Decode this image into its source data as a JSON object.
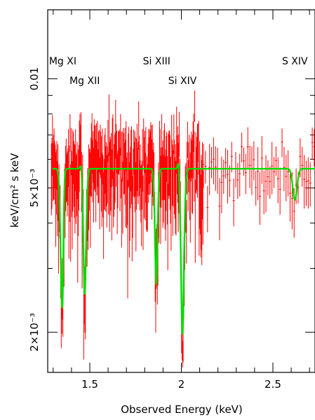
{
  "chart_data": {
    "type": "line",
    "xlabel": "Observed Energy (keV)",
    "ylabel": "keV/cm² s keV",
    "xlim": [
      1.27,
      2.73
    ],
    "ylim": [
      0.00155,
      0.0155
    ],
    "y_scale": "log",
    "x_ticks": [
      {
        "value": 1.5,
        "label": "1.5"
      },
      {
        "value": 2.0,
        "label": "2"
      },
      {
        "value": 2.5,
        "label": "2.5"
      }
    ],
    "y_ticks": [
      {
        "value": 0.002,
        "label": "2×10⁻³"
      },
      {
        "value": 0.005,
        "label": "5×10⁻³"
      },
      {
        "value": 0.01,
        "label": "0.01"
      }
    ],
    "line_labels": [
      {
        "text": "Mg XI",
        "energy": 1.352
      },
      {
        "text": "Mg XII",
        "energy": 1.472
      },
      {
        "text": "Si XIII",
        "energy": 1.865
      },
      {
        "text": "Si XIV",
        "energy": 2.006
      },
      {
        "text": "S XIV",
        "energy": 2.62
      }
    ],
    "series": [
      {
        "kind": "data",
        "color": "#ff0000",
        "continuum": 0.00565,
        "scatter": 0.0012,
        "energy_range": [
          1.29,
          2.73
        ],
        "note_absorption": true
      },
      {
        "kind": "model",
        "color": "#00dd00",
        "continuum": 0.00565,
        "absorption_lines": [
          {
            "energy": 1.345,
            "depth": 0.47,
            "width": 0.008
          },
          {
            "energy": 1.352,
            "depth": 0.35,
            "width": 0.005
          },
          {
            "energy": 1.472,
            "depth": 0.55,
            "width": 0.009
          },
          {
            "energy": 1.863,
            "depth": 0.52,
            "width": 0.008
          },
          {
            "energy": 2.006,
            "depth": 0.65,
            "width": 0.01
          },
          {
            "energy": 2.62,
            "depth": 0.18,
            "width": 0.012
          }
        ],
        "emission_bumps": [
          {
            "energy": 1.455,
            "height": 0.06,
            "width": 0.006
          },
          {
            "energy": 1.985,
            "height": 0.08,
            "width": 0.005
          }
        ]
      }
    ]
  }
}
